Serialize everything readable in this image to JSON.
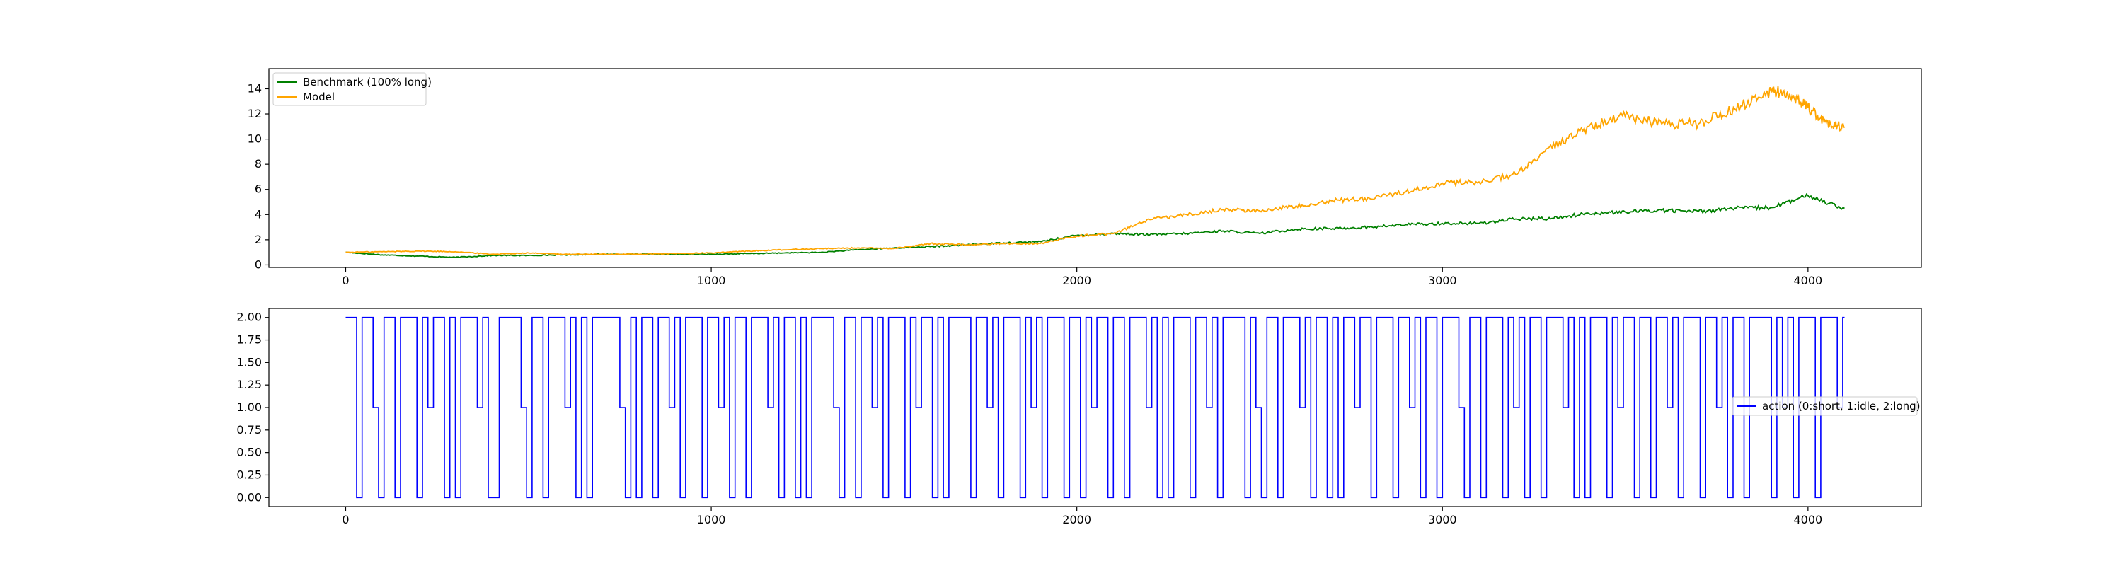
{
  "colors": {
    "benchmark": "#008000",
    "model": "#ffa500",
    "action": "#0000ff",
    "axes": "#000000",
    "legend_border": "#cccccc"
  },
  "chart_data": [
    {
      "type": "line",
      "title": "",
      "xlabel": "",
      "ylabel": "",
      "xlim": [
        -210,
        4310
      ],
      "ylim": [
        -0.2,
        15.6
      ],
      "grid": false,
      "legend_position": "top-left",
      "xticks": [
        0,
        1000,
        2000,
        3000,
        4000
      ],
      "xtick_labels": [
        "0",
        "1000",
        "2000",
        "3000",
        "4000"
      ],
      "yticks": [
        0,
        2,
        4,
        6,
        8,
        10,
        12,
        14
      ],
      "ytick_labels": [
        "0",
        "2",
        "4",
        "6",
        "8",
        "10",
        "12",
        "14"
      ],
      "series": [
        {
          "name": "Benchmark (100% long)",
          "color": "#008000",
          "x": [
            0,
            100,
            200,
            300,
            400,
            500,
            600,
            700,
            800,
            900,
            1000,
            1100,
            1200,
            1300,
            1400,
            1500,
            1600,
            1700,
            1800,
            1900,
            2000,
            2100,
            2200,
            2300,
            2400,
            2500,
            2600,
            2700,
            2800,
            2900,
            3000,
            3100,
            3200,
            3300,
            3400,
            3500,
            3600,
            3700,
            3800,
            3900,
            4000,
            4100
          ],
          "values": [
            1.0,
            0.8,
            0.7,
            0.6,
            0.75,
            0.75,
            0.8,
            0.85,
            0.85,
            0.85,
            0.85,
            0.9,
            0.95,
            1.0,
            1.2,
            1.35,
            1.45,
            1.6,
            1.75,
            1.85,
            2.35,
            2.5,
            2.4,
            2.5,
            2.7,
            2.5,
            2.85,
            2.9,
            3.0,
            3.2,
            3.3,
            3.3,
            3.65,
            3.7,
            4.1,
            4.2,
            4.35,
            4.25,
            4.5,
            4.55,
            5.5,
            4.5
          ]
        },
        {
          "name": "Model",
          "color": "#ffa500",
          "x": [
            0,
            100,
            200,
            300,
            400,
            500,
            600,
            700,
            800,
            900,
            1000,
            1100,
            1200,
            1300,
            1400,
            1500,
            1600,
            1700,
            1800,
            1900,
            2000,
            2100,
            2200,
            2300,
            2400,
            2500,
            2600,
            2700,
            2800,
            2900,
            3000,
            3100,
            3200,
            3300,
            3400,
            3500,
            3600,
            3700,
            3800,
            3900,
            3950,
            4000,
            4050,
            4100
          ],
          "values": [
            1.0,
            1.05,
            1.1,
            1.05,
            0.85,
            0.95,
            0.85,
            0.85,
            0.85,
            0.9,
            0.95,
            1.1,
            1.2,
            1.3,
            1.35,
            1.3,
            1.7,
            1.6,
            1.7,
            1.7,
            2.3,
            2.5,
            3.6,
            4.0,
            4.4,
            4.3,
            4.7,
            5.1,
            5.3,
            5.8,
            6.5,
            6.6,
            7.2,
            9.3,
            11.0,
            11.8,
            11.2,
            11.2,
            12.4,
            13.8,
            13.6,
            12.5,
            11.3,
            10.9
          ]
        }
      ]
    },
    {
      "type": "line",
      "title": "",
      "xlabel": "",
      "ylabel": "",
      "xlim": [
        -210,
        4310
      ],
      "ylim": [
        -0.1,
        2.1
      ],
      "grid": false,
      "legend_position": "center-right",
      "xticks": [
        0,
        1000,
        2000,
        3000,
        4000
      ],
      "xtick_labels": [
        "0",
        "1000",
        "2000",
        "3000",
        "4000"
      ],
      "yticks": [
        0.0,
        0.25,
        0.5,
        0.75,
        1.0,
        1.25,
        1.5,
        1.75,
        2.0
      ],
      "ytick_labels": [
        "0.00",
        "0.25",
        "0.50",
        "0.75",
        "1.00",
        "1.25",
        "1.50",
        "1.75",
        "2.00"
      ],
      "series": [
        {
          "name": "action (0:short, 1:idle, 2:long)",
          "color": "#0000ff",
          "x_range": [
            0,
            4100
          ],
          "x_step": 15,
          "values": [
            2,
            2,
            0,
            2,
            2,
            1,
            0,
            2,
            2,
            0,
            2,
            2,
            2,
            0,
            2,
            1,
            2,
            2,
            0,
            2,
            0,
            2,
            2,
            2,
            1,
            2,
            0,
            0,
            2,
            2,
            2,
            2,
            1,
            0,
            2,
            2,
            0,
            2,
            2,
            2,
            1,
            2,
            0,
            2,
            0,
            2,
            2,
            2,
            2,
            2,
            1,
            0,
            2,
            0,
            2,
            2,
            0,
            2,
            2,
            1,
            2,
            0,
            2,
            2,
            2,
            0,
            2,
            2,
            1,
            2,
            0,
            2,
            2,
            0,
            2,
            2,
            2,
            1,
            2,
            0,
            2,
            2,
            0,
            2,
            0,
            2,
            2,
            2,
            2,
            1,
            0,
            2,
            2,
            0,
            2,
            2,
            1,
            2,
            0,
            2,
            2,
            2,
            0,
            2,
            1,
            2,
            2,
            0,
            2,
            0,
            2,
            2,
            2,
            2,
            0,
            2,
            2,
            1,
            2,
            0,
            2,
            2,
            2,
            0,
            2,
            1,
            2,
            0,
            2,
            2,
            2,
            0,
            2,
            2,
            0,
            2,
            1,
            2,
            2,
            0,
            2,
            2,
            0,
            2,
            2,
            2,
            1,
            2,
            0,
            2,
            0,
            2,
            2,
            2,
            0,
            2,
            2,
            1,
            2,
            0,
            2,
            2,
            2,
            2,
            0,
            2,
            1,
            0,
            2,
            2,
            0,
            2,
            2,
            2,
            1,
            2,
            0,
            2,
            2,
            0,
            2,
            0,
            2,
            2,
            1,
            2,
            2,
            0,
            2,
            2,
            2,
            0,
            2,
            2,
            1,
            2,
            0,
            2,
            2,
            0,
            2,
            2,
            2,
            1,
            0,
            2,
            2,
            0,
            2,
            2,
            2,
            0,
            2,
            1,
            2,
            0,
            2,
            2,
            0,
            2,
            2,
            2,
            1,
            2,
            0,
            2,
            0,
            2,
            2,
            2,
            0,
            2,
            1,
            2,
            2,
            0,
            2,
            2,
            0,
            2,
            2,
            1,
            2,
            0,
            2,
            2,
            2,
            0,
            2,
            2,
            1,
            2,
            0,
            2,
            2,
            0,
            2,
            2,
            2,
            2,
            0,
            2,
            1,
            2,
            0,
            2,
            2,
            2,
            0,
            2,
            2,
            2,
            1,
            2
          ]
        }
      ]
    }
  ]
}
